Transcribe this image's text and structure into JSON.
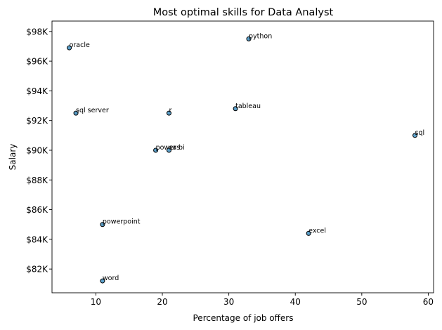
{
  "chart_data": {
    "type": "scatter",
    "title": "Most optimal skills for Data Analyst",
    "xlabel": "Percentage of job offers",
    "ylabel": "Salary",
    "xlim": [
      3.4,
      60.8
    ],
    "ylim": [
      80400,
      98700
    ],
    "x_ticks": [
      10,
      20,
      30,
      40,
      50,
      60
    ],
    "y_ticks": [
      82000,
      84000,
      86000,
      88000,
      90000,
      92000,
      94000,
      96000,
      98000
    ],
    "y_tick_labels": [
      "$82K",
      "$84K",
      "$86K",
      "$88K",
      "$90K",
      "$92K",
      "$94K",
      "$96K",
      "$98K"
    ],
    "grid": false,
    "marker_color": "#5b9fc9",
    "marker_edge_color": "#000000",
    "points": [
      {
        "label": "oracle",
        "x": 6,
        "y": 96900
      },
      {
        "label": "python",
        "x": 33,
        "y": 97500
      },
      {
        "label": "sql server",
        "x": 7,
        "y": 92500
      },
      {
        "label": "r",
        "x": 21,
        "y": 92500
      },
      {
        "label": "tableau",
        "x": 31,
        "y": 92800
      },
      {
        "label": "sql",
        "x": 58,
        "y": 91000
      },
      {
        "label": "power bi",
        "x": 19,
        "y": 90000
      },
      {
        "label": "sas",
        "x": 21,
        "y": 90000
      },
      {
        "label": "powerpoint",
        "x": 11,
        "y": 85000
      },
      {
        "label": "excel",
        "x": 42,
        "y": 84400
      },
      {
        "label": "word",
        "x": 11,
        "y": 81200
      }
    ]
  }
}
